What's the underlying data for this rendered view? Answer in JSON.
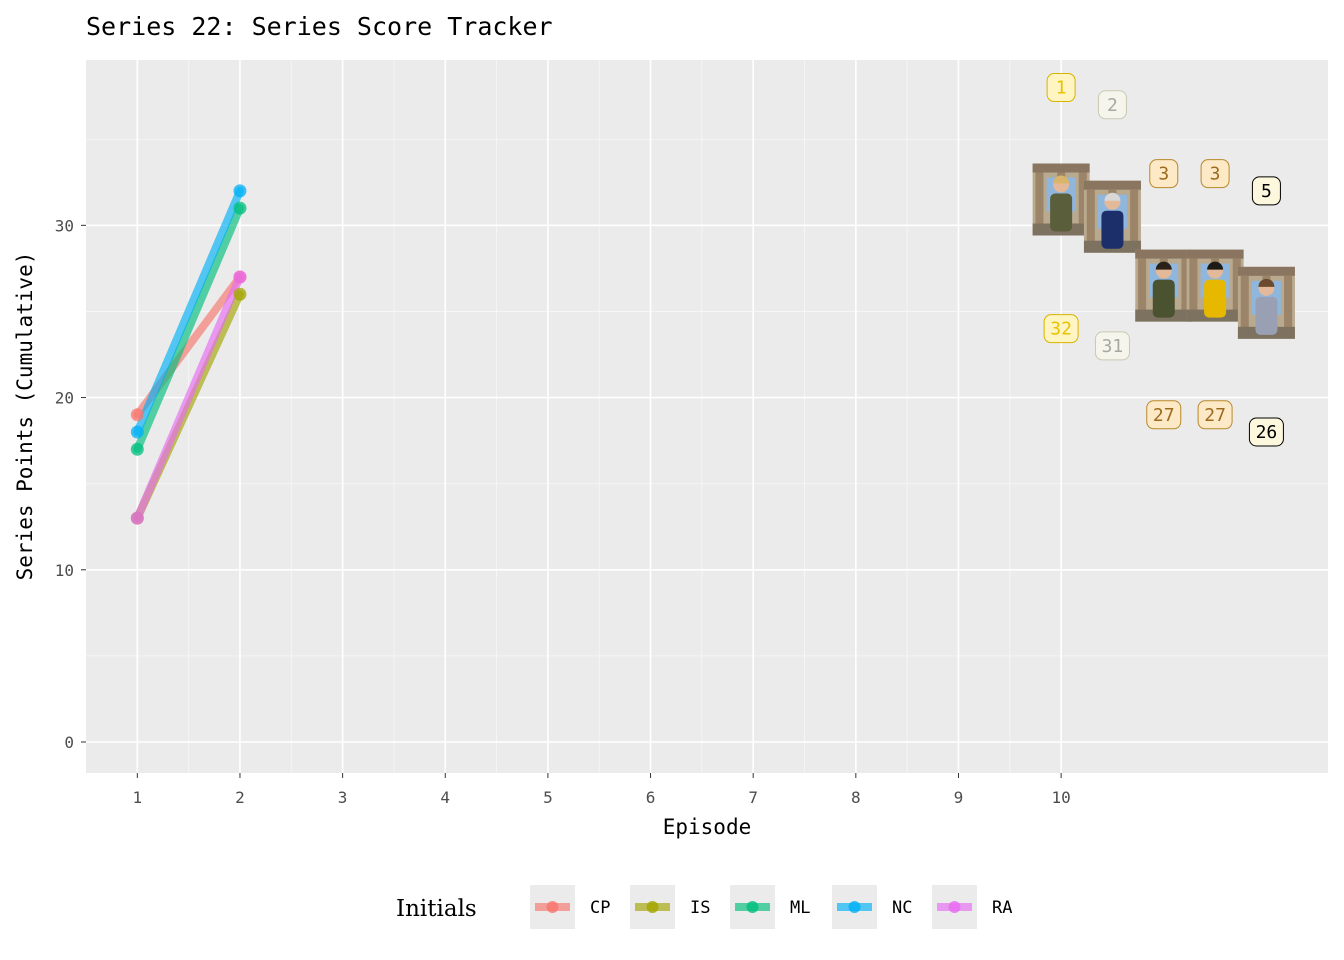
{
  "chart_data": {
    "type": "line",
    "title": "Series 22: Series Score Tracker",
    "xlabel": "Episode",
    "ylabel": "Series Points (Cumulative)",
    "x_ticks": [
      "1",
      "2",
      "3",
      "4",
      "5",
      "6",
      "7",
      "8",
      "9",
      "10"
    ],
    "y_ticks": [
      "0",
      "10",
      "20",
      "30"
    ],
    "xlim": [
      0.5,
      12.6
    ],
    "ylim": [
      -1.8,
      39.6
    ],
    "grid": true,
    "legend": {
      "title": "Initials",
      "position": "bottom"
    },
    "x": [
      1,
      2
    ],
    "series": [
      {
        "name": "CP",
        "color": "#F8766D",
        "values": [
          19,
          27
        ]
      },
      {
        "name": "IS",
        "color": "#A3A500",
        "values": [
          13,
          26
        ]
      },
      {
        "name": "ML",
        "color": "#00BF7D",
        "values": [
          17,
          31
        ]
      },
      {
        "name": "NC",
        "color": "#00B0F6",
        "values": [
          18,
          32
        ]
      },
      {
        "name": "RA",
        "color": "#E76BF3",
        "values": [
          13,
          27
        ]
      }
    ],
    "annotations": {
      "ranks": [
        {
          "text": "1",
          "x": 10.0,
          "y": 38.0,
          "fill": "#fff5c2",
          "stroke": "#d9b400",
          "color": "#e6c200"
        },
        {
          "text": "2",
          "x": 10.5,
          "y": 37.0,
          "fill": "#f5f5ec",
          "stroke": "#c9c9b5",
          "color": "#a8a8a0"
        },
        {
          "text": "3",
          "x": 11.0,
          "y": 33.0,
          "fill": "#fde9c6",
          "stroke": "#b8892b",
          "color": "#9c6b1e"
        },
        {
          "text": "3",
          "x": 11.5,
          "y": 33.0,
          "fill": "#fde9c6",
          "stroke": "#b8892b",
          "color": "#9c6b1e"
        },
        {
          "text": "5",
          "x": 12.0,
          "y": 32.0,
          "fill": "#fdf8dd",
          "stroke": "#000000",
          "color": "#000000"
        }
      ],
      "scores": [
        {
          "text": "32",
          "x": 10.0,
          "y": 24.0,
          "fill": "#fff5c2",
          "stroke": "#d9b400",
          "color": "#e6c200"
        },
        {
          "text": "31",
          "x": 10.5,
          "y": 23.0,
          "fill": "#f5f5ec",
          "stroke": "#c9c9b5",
          "color": "#a8a8a0"
        },
        {
          "text": "27",
          "x": 11.0,
          "y": 19.0,
          "fill": "#fde9c6",
          "stroke": "#b8892b",
          "color": "#9c6b1e"
        },
        {
          "text": "27",
          "x": 11.5,
          "y": 19.0,
          "fill": "#fde9c6",
          "stroke": "#b8892b",
          "color": "#9c6b1e"
        },
        {
          "text": "26",
          "x": 12.0,
          "y": 18.0,
          "fill": "#fdf8dd",
          "stroke": "#000000",
          "color": "#000000"
        }
      ],
      "portraits": [
        {
          "x": 10.0,
          "y": 31.5,
          "coat": "#5b5e3a",
          "hair": "#d9b56a"
        },
        {
          "x": 10.5,
          "y": 30.5,
          "coat": "#1c2f6b",
          "hair": "#d8d8d8"
        },
        {
          "x": 11.0,
          "y": 26.5,
          "coat": "#4a5230",
          "hair": "#2a2118"
        },
        {
          "x": 11.5,
          "y": 26.5,
          "coat": "#e6b800",
          "hair": "#1e1a16"
        },
        {
          "x": 12.0,
          "y": 25.5,
          "coat": "#9aa0b4",
          "hair": "#6b4a2e"
        }
      ]
    }
  }
}
